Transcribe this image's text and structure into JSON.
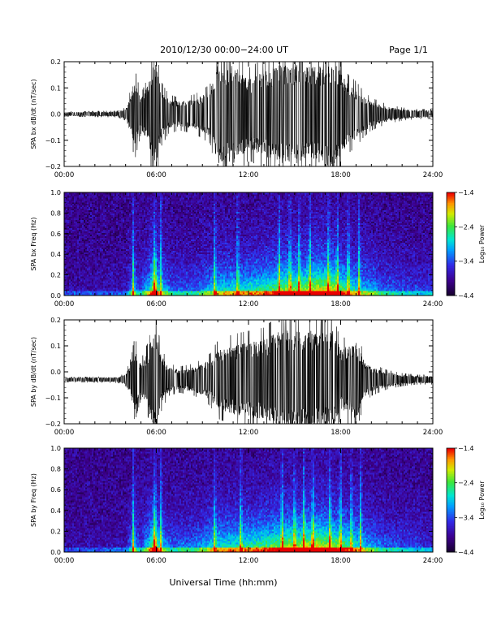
{
  "header": {
    "title": "2010/12/30  00:00−24:00 UT",
    "page": "Page 1/1"
  },
  "xlabel": "Universal Time (hh:mm)",
  "chart_data": [
    {
      "type": "line",
      "ylabel": "SPA bx dB/dt (nT/sec)",
      "xlim": [
        0,
        24
      ],
      "ylim": [
        -0.2,
        0.2
      ],
      "xticks": [
        "00:00",
        "06:00",
        "12:00",
        "18:00",
        "24:00"
      ],
      "yticks": [
        "0.2",
        "0.1",
        "0.0",
        "−0.1",
        "−0.2"
      ],
      "ytick_values": [
        0.2,
        0.1,
        0.0,
        -0.1,
        -0.2
      ],
      "baseline": 0.0,
      "envelope": {
        "hours": [
          0,
          3.5,
          4.0,
          4.3,
          4.6,
          5.0,
          5.5,
          5.8,
          6.0,
          6.3,
          6.8,
          7.5,
          8.5,
          9.5,
          10.0,
          11.0,
          12.0,
          13.0,
          14.0,
          15.0,
          16.0,
          17.0,
          17.5,
          18.0,
          18.5,
          19.0,
          19.5,
          20.0,
          21.0,
          22.0,
          23.0,
          24.0
        ],
        "amplitude": [
          0.008,
          0.01,
          0.02,
          0.07,
          0.14,
          0.06,
          0.12,
          0.22,
          0.2,
          0.1,
          0.06,
          0.05,
          0.06,
          0.09,
          0.2,
          0.2,
          0.14,
          0.17,
          0.2,
          0.2,
          0.19,
          0.2,
          0.22,
          0.17,
          0.12,
          0.1,
          0.07,
          0.05,
          0.03,
          0.02,
          0.015,
          0.015
        ]
      },
      "series": [
        {
          "color": "#000000"
        }
      ]
    },
    {
      "type": "heatmap",
      "ylabel": "SPA bx Freq (Hz)",
      "xlim": [
        0,
        24
      ],
      "ylim": [
        0,
        1.0
      ],
      "xticks": [
        "00:00",
        "06:00",
        "12:00",
        "18:00",
        "24:00"
      ],
      "yticks": [
        "1.0",
        "0.8",
        "0.6",
        "0.4",
        "0.2",
        "0.0"
      ],
      "ytick_values": [
        1.0,
        0.8,
        0.6,
        0.4,
        0.2,
        0.0
      ],
      "colorbar": {
        "label": "Log₁₀ Power",
        "ticks": [
          "−1.4",
          "−2.4",
          "−3.4",
          "−4.4"
        ],
        "tick_values": [
          -1.4,
          -2.4,
          -3.4,
          -4.4
        ],
        "range": [
          -4.4,
          -1.4
        ]
      },
      "activity": {
        "hours": [
          0,
          4.0,
          4.5,
          5.0,
          5.5,
          5.9,
          6.3,
          7.0,
          8.5,
          10.0,
          12.0,
          13.5,
          14.5,
          15.5,
          16.5,
          17.5,
          18.5,
          19.5,
          21.0,
          24.0
        ],
        "level": [
          0.05,
          0.1,
          0.45,
          0.25,
          0.55,
          0.95,
          0.5,
          0.3,
          0.3,
          0.55,
          0.6,
          0.7,
          0.85,
          0.8,
          0.95,
          0.9,
          0.65,
          0.5,
          0.3,
          0.2
        ]
      },
      "bright_hours": [
        4.5,
        5.9,
        6.3,
        9.8,
        11.3,
        14.0,
        14.7,
        15.3,
        16.0,
        17.2,
        17.8,
        18.5,
        19.2
      ]
    },
    {
      "type": "line",
      "ylabel": "SPA by dB/dt (nT/sec)",
      "xlim": [
        0,
        24
      ],
      "ylim": [
        -0.2,
        0.2
      ],
      "xticks": [
        "00:00",
        "06:00",
        "12:00",
        "18:00",
        "24:00"
      ],
      "yticks": [
        "0.2",
        "0.1",
        "0.0",
        "−0.1",
        "−0.2"
      ],
      "ytick_values": [
        0.2,
        0.1,
        0.0,
        -0.1,
        -0.2
      ],
      "baseline": -0.03,
      "envelope": {
        "hours": [
          0,
          3.5,
          4.0,
          4.3,
          4.6,
          5.0,
          5.5,
          5.8,
          6.0,
          6.3,
          6.8,
          7.5,
          8.5,
          9.5,
          10.0,
          11.0,
          12.0,
          13.0,
          14.0,
          15.0,
          16.0,
          17.0,
          17.5,
          18.0,
          18.5,
          19.0,
          19.5,
          20.0,
          21.0,
          22.0,
          23.0,
          24.0
        ],
        "amplitude": [
          0.008,
          0.01,
          0.02,
          0.06,
          0.13,
          0.06,
          0.12,
          0.2,
          0.19,
          0.1,
          0.05,
          0.04,
          0.05,
          0.08,
          0.12,
          0.14,
          0.15,
          0.16,
          0.2,
          0.2,
          0.2,
          0.19,
          0.2,
          0.12,
          0.14,
          0.16,
          0.08,
          0.05,
          0.03,
          0.02,
          0.015,
          0.015
        ]
      },
      "series": [
        {
          "color": "#000000"
        }
      ]
    },
    {
      "type": "heatmap",
      "ylabel": "SPA by Freq (Hz)",
      "xlim": [
        0,
        24
      ],
      "ylim": [
        0,
        1.0
      ],
      "xticks": [
        "00:00",
        "06:00",
        "12:00",
        "18:00",
        "24:00"
      ],
      "yticks": [
        "1.0",
        "0.8",
        "0.6",
        "0.4",
        "0.2",
        "0.0"
      ],
      "ytick_values": [
        1.0,
        0.8,
        0.6,
        0.4,
        0.2,
        0.0
      ],
      "colorbar": {
        "label": "Log₁₀ Power",
        "ticks": [
          "−1.4",
          "−2.4",
          "−3.4",
          "−4.4"
        ],
        "tick_values": [
          -1.4,
          -2.4,
          -3.4,
          -4.4
        ],
        "range": [
          -4.4,
          -1.4
        ]
      },
      "activity": {
        "hours": [
          0,
          4.0,
          4.5,
          5.0,
          5.5,
          5.9,
          6.3,
          7.0,
          8.5,
          10.0,
          12.0,
          13.5,
          14.5,
          15.5,
          16.5,
          17.5,
          18.5,
          19.5,
          21.0,
          24.0
        ],
        "level": [
          0.05,
          0.1,
          0.45,
          0.25,
          0.55,
          0.95,
          0.5,
          0.3,
          0.35,
          0.6,
          0.65,
          0.75,
          0.85,
          0.85,
          0.95,
          0.85,
          0.7,
          0.5,
          0.3,
          0.2
        ]
      },
      "bright_hours": [
        4.5,
        5.9,
        6.3,
        9.8,
        11.5,
        14.2,
        15.0,
        15.6,
        16.2,
        17.3,
        18.0,
        18.7,
        19.3
      ]
    }
  ]
}
